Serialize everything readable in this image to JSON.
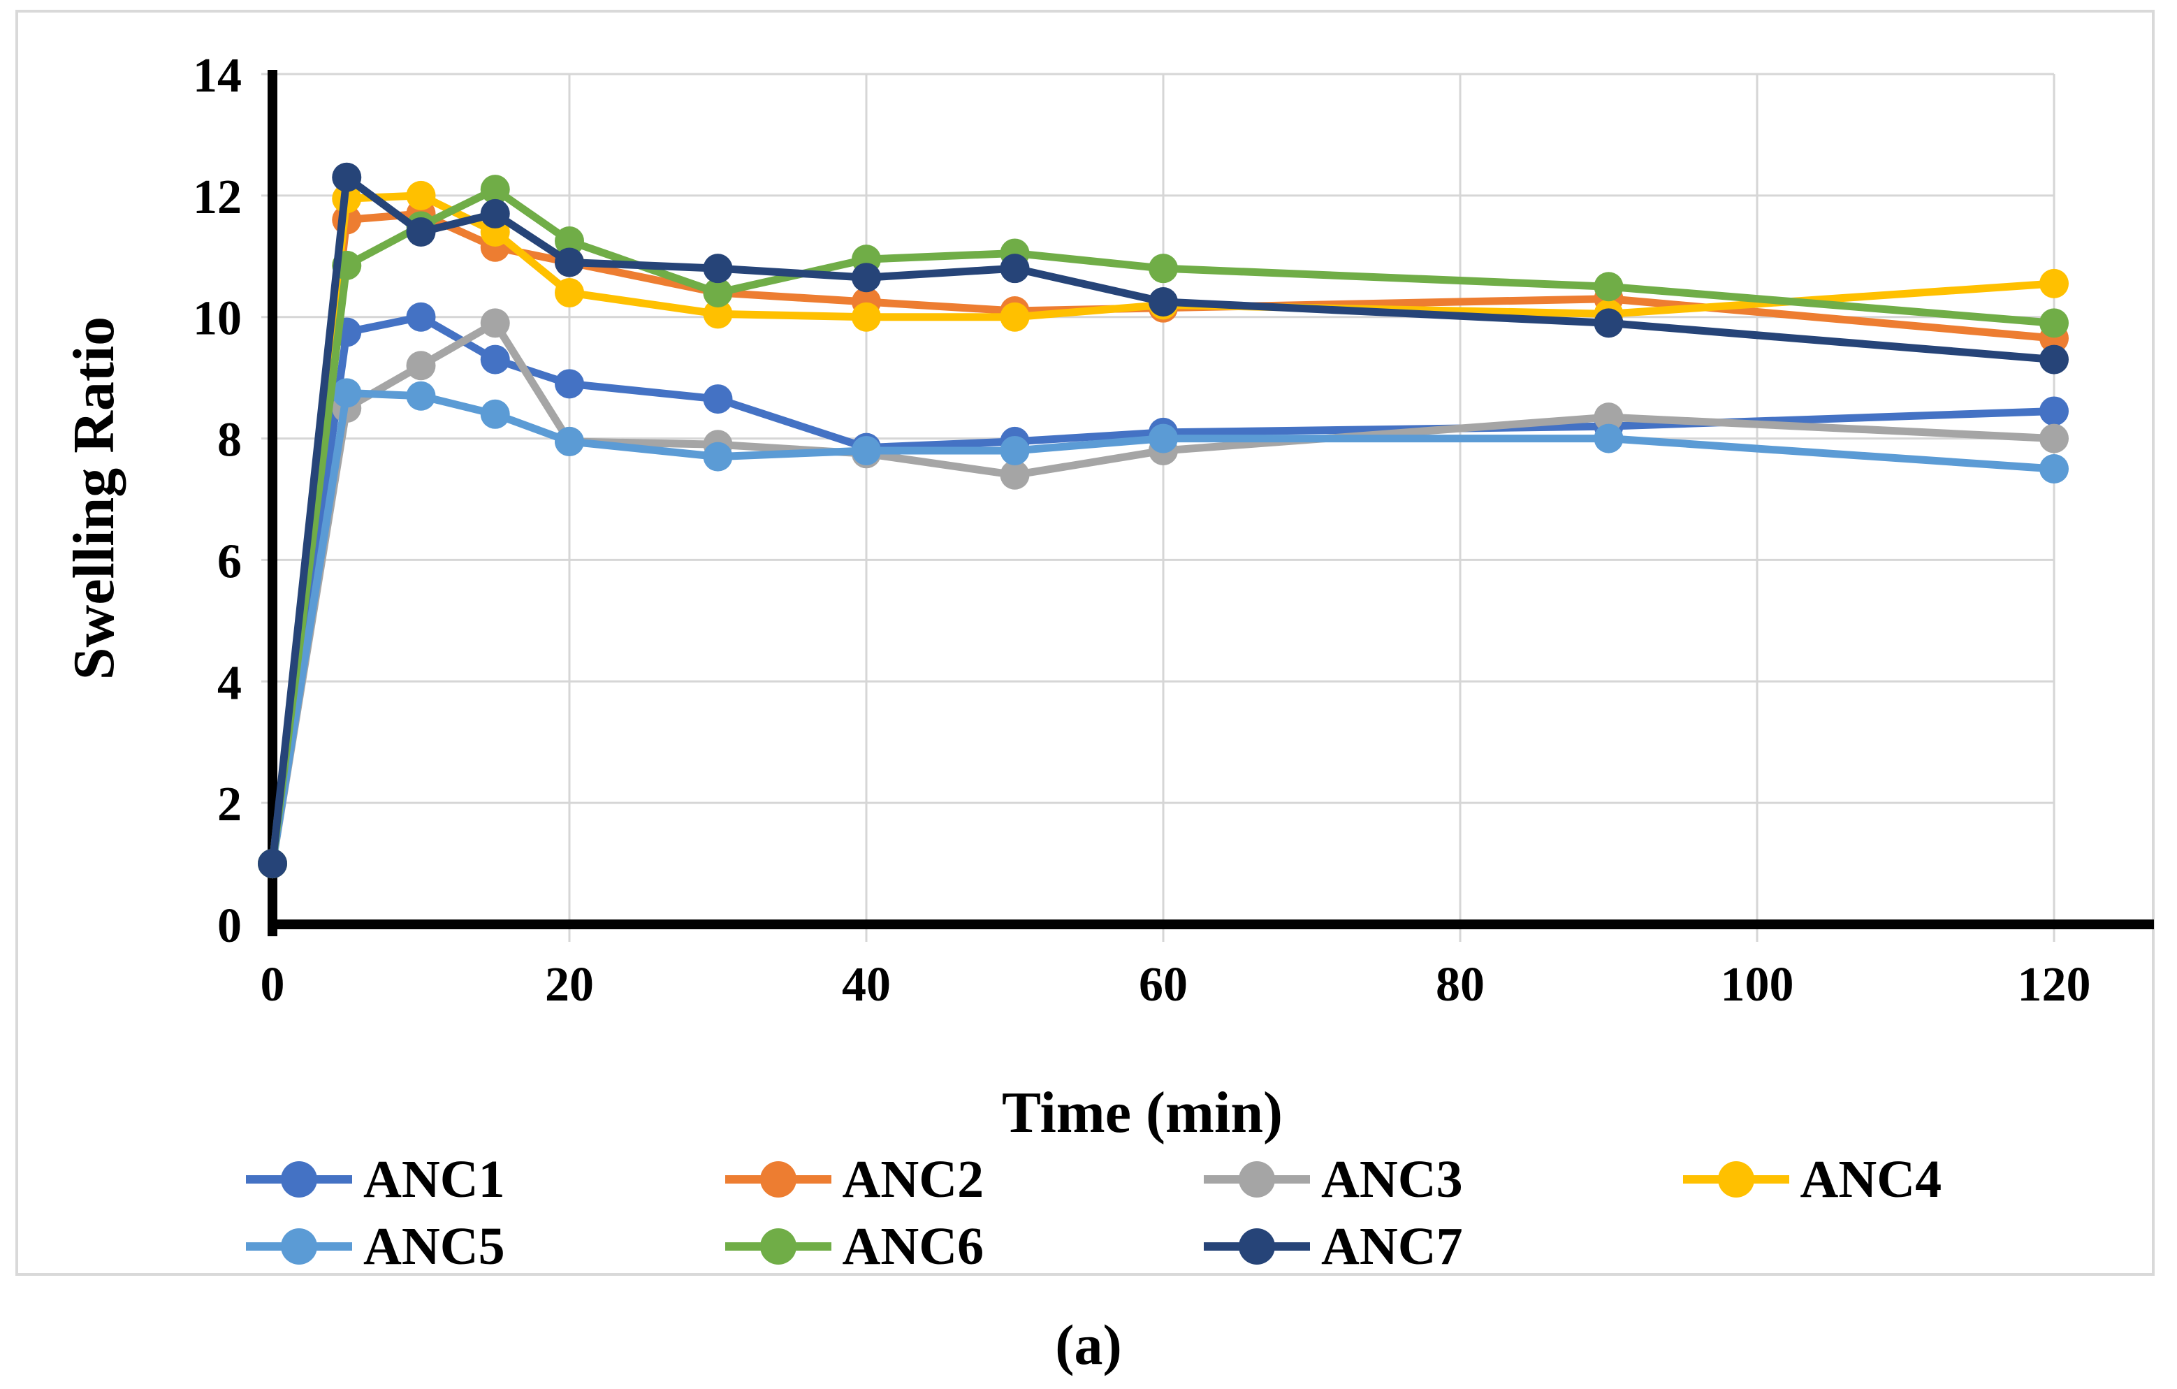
{
  "figure": {
    "caption": "(a)",
    "border_color": "#d9d9d9"
  },
  "chart_data": {
    "type": "line",
    "title": "",
    "xlabel": "Time (min)",
    "ylabel": "Swelling Ratio",
    "x": [
      0,
      5,
      10,
      15,
      20,
      30,
      40,
      50,
      60,
      90,
      120
    ],
    "xticks": [
      0,
      20,
      40,
      60,
      80,
      100,
      120
    ],
    "yticks": [
      0,
      2,
      4,
      6,
      8,
      10,
      12,
      14
    ],
    "xlim": [
      0,
      120
    ],
    "ylim": [
      0,
      14
    ],
    "grid": true,
    "grid_color": "#d6d6d6",
    "axis_color": "#000000",
    "legend_position": "bottom",
    "series": [
      {
        "name": "ANC1",
        "color": "#4472C4",
        "values": [
          1,
          9.75,
          10.0,
          9.3,
          8.9,
          8.65,
          7.85,
          7.95,
          8.1,
          8.2,
          8.45
        ]
      },
      {
        "name": "ANC2",
        "color": "#ED7D31",
        "values": [
          1,
          11.6,
          11.7,
          11.15,
          10.9,
          10.4,
          10.25,
          10.1,
          10.15,
          10.3,
          9.65
        ]
      },
      {
        "name": "ANC3",
        "color": "#A5A5A5",
        "values": [
          1,
          8.5,
          9.2,
          9.9,
          7.95,
          7.9,
          7.75,
          7.4,
          7.8,
          8.35,
          8.0
        ]
      },
      {
        "name": "ANC4",
        "color": "#FFC000",
        "values": [
          1,
          11.95,
          12.0,
          11.4,
          10.4,
          10.05,
          10.0,
          10.0,
          10.2,
          10.05,
          10.55
        ]
      },
      {
        "name": "ANC5",
        "color": "#5B9BD5",
        "values": [
          1,
          8.75,
          8.7,
          8.4,
          7.95,
          7.7,
          7.8,
          7.8,
          8.0,
          8.0,
          7.5
        ]
      },
      {
        "name": "ANC6",
        "color": "#70AD47",
        "values": [
          1,
          10.85,
          11.5,
          12.1,
          11.25,
          10.4,
          10.95,
          11.05,
          10.8,
          10.5,
          9.9
        ]
      },
      {
        "name": "ANC7",
        "color": "#264478",
        "values": [
          1,
          12.3,
          11.4,
          11.7,
          10.9,
          10.8,
          10.65,
          10.8,
          10.25,
          9.9,
          9.3
        ]
      }
    ]
  }
}
